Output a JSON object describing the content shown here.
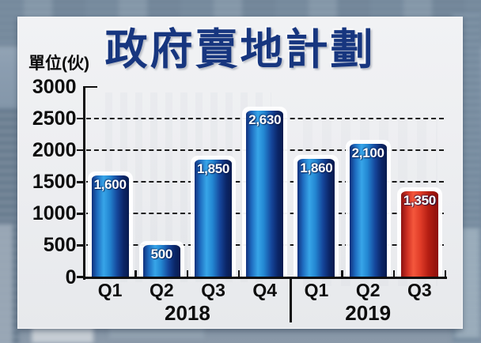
{
  "chart_data": {
    "type": "bar",
    "title": "政府賣地計劃",
    "ylabel": "單位(伙)",
    "categories": [
      "Q1",
      "Q2",
      "Q3",
      "Q4",
      "Q1",
      "Q2",
      "Q3"
    ],
    "values": [
      1600,
      500,
      1850,
      2630,
      1860,
      2100,
      1350
    ],
    "value_labels": [
      "1,600",
      "500",
      "1,850",
      "2,630",
      "1,860",
      "2,100",
      "1,350"
    ],
    "bar_styles": [
      "blue",
      "blue",
      "blue",
      "blue",
      "blue",
      "blue",
      "red"
    ],
    "year_groups": [
      {
        "label": "2018",
        "start": 0,
        "count": 4
      },
      {
        "label": "2019",
        "start": 4,
        "count": 3
      }
    ],
    "ylim": [
      0,
      3000
    ],
    "yticks": [
      {
        "value": 3000,
        "label": "3000"
      },
      {
        "value": 2500,
        "label": "2500"
      },
      {
        "value": 2000,
        "label": "2000"
      },
      {
        "value": 1500,
        "label": "1500"
      },
      {
        "value": 1000,
        "label": "1000"
      },
      {
        "value": 500,
        "label": "500"
      },
      {
        "value": 0,
        "label": "0"
      }
    ],
    "grid": "horizontal-dashed",
    "legend": "none"
  },
  "colors": {
    "title": "#17367f",
    "axis": "#101010",
    "bar_blue_light": "#37a5e8",
    "bar_blue_dark": "#081b4e",
    "bar_red_light": "#f4573c",
    "bar_red_dark": "#8c0f0a",
    "value_label": "#ffffff"
  }
}
